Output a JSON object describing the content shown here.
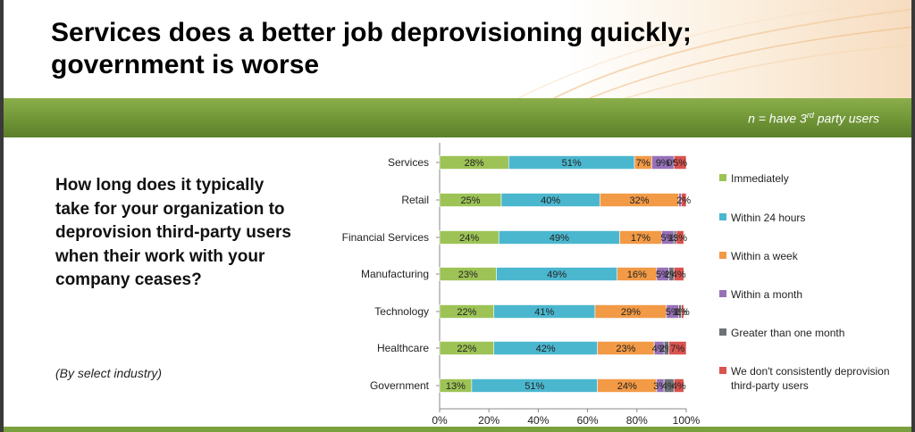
{
  "title_line1": "Services does a better job deprovisioning quickly;",
  "title_line2": "government is worse",
  "note": {
    "prefix": "n = have 3",
    "sup": "rd",
    "suffix": " party users"
  },
  "question": "How long does it typically take for your organization to deprovision third-party users when their work with your company ceases?",
  "subnote": "(By select industry)",
  "colors": {
    "Immediately": "#9dc356",
    "Within 24 hours": "#4bb7cf",
    "Within a week": "#f29a46",
    "Within a month": "#9771b8",
    "Greater than one month": "#6d7278",
    "We don't consistently deprovision third-party users": "#d9534f"
  },
  "chart_data": {
    "type": "bar",
    "orientation": "horizontal",
    "stacked": true,
    "categories": [
      "Services",
      "Retail",
      "Financial Services",
      "Manufacturing",
      "Technology",
      "Healthcare",
      "Government"
    ],
    "series": [
      {
        "name": "Immediately",
        "values": [
          28,
          25,
          24,
          23,
          22,
          22,
          13
        ]
      },
      {
        "name": "Within 24 hours",
        "values": [
          51,
          40,
          49,
          49,
          41,
          42,
          51
        ]
      },
      {
        "name": "Within a week",
        "values": [
          7,
          32,
          17,
          16,
          29,
          23,
          24
        ]
      },
      {
        "name": "Within a month",
        "values": [
          9,
          1,
          5,
          5,
          5,
          4,
          3
        ]
      },
      {
        "name": "Greater than one month",
        "values": [
          0,
          0,
          1,
          2,
          1,
          2,
          4
        ]
      },
      {
        "name": "We don't consistently deprovision third-party users",
        "values": [
          5,
          2,
          3,
          4,
          1,
          7,
          4
        ]
      }
    ],
    "data_labels": [
      [
        "28%",
        "51%",
        "7%",
        "9%",
        "0%",
        "5%"
      ],
      [
        "25%",
        "40%",
        "32%",
        "",
        "",
        "2%"
      ],
      [
        "24%",
        "49%",
        "17%",
        "5%",
        "1%",
        "3%"
      ],
      [
        "23%",
        "49%",
        "16%",
        "5%",
        "2%",
        "4%"
      ],
      [
        "22%",
        "41%",
        "29%",
        "5%",
        "1%",
        "1%"
      ],
      [
        "22%",
        "42%",
        "23%",
        "4%",
        "2%",
        "7%"
      ],
      [
        "13%",
        "51%",
        "24%",
        "3%",
        "4%",
        "4%"
      ]
    ],
    "x_ticks": [
      "0%",
      "20%",
      "40%",
      "60%",
      "80%",
      "100%"
    ],
    "xlim": [
      0,
      100
    ],
    "legend_position": "right",
    "legend": [
      "Immediately",
      "Within 24 hours",
      "Within a week",
      "Within a month",
      "Greater than one month",
      "We don't consistently deprovision third-party users"
    ]
  }
}
